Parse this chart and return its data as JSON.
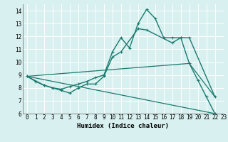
{
  "title": "",
  "xlabel": "Humidex (Indice chaleur)",
  "xlim": [
    -0.5,
    23
  ],
  "ylim": [
    6,
    14.5
  ],
  "xticks": [
    0,
    1,
    2,
    3,
    4,
    5,
    6,
    7,
    8,
    9,
    10,
    11,
    12,
    13,
    14,
    15,
    16,
    17,
    18,
    19,
    20,
    21,
    22,
    23
  ],
  "yticks": [
    6,
    7,
    8,
    9,
    10,
    11,
    12,
    13,
    14
  ],
  "bg_color": "#d8f0f0",
  "grid_color": "#b8d8d8",
  "line_color": "#1a7a6e",
  "line1_x": [
    0,
    1,
    2,
    3,
    4,
    5,
    6,
    7,
    8,
    9,
    10,
    11,
    12,
    13,
    14,
    15,
    16,
    17,
    18,
    19,
    20,
    21,
    22
  ],
  "line1_y": [
    8.9,
    8.5,
    8.2,
    8.0,
    7.9,
    8.1,
    8.3,
    8.5,
    8.8,
    9.0,
    10.8,
    11.9,
    11.1,
    13.0,
    14.1,
    13.4,
    11.9,
    11.9,
    11.9,
    9.9,
    8.6,
    7.3,
    6.0
  ],
  "line2_x": [
    0,
    2,
    3,
    4,
    5,
    6,
    7,
    8,
    9,
    10,
    11,
    13,
    14,
    17,
    18,
    19,
    22
  ],
  "line2_y": [
    8.9,
    8.2,
    8.0,
    7.8,
    7.6,
    8.0,
    8.3,
    8.3,
    8.9,
    10.4,
    10.8,
    12.6,
    12.5,
    11.5,
    11.9,
    11.9,
    7.3
  ],
  "line3_x": [
    0,
    22
  ],
  "line3_y": [
    8.9,
    6.0
  ],
  "line4_x": [
    0,
    19,
    22
  ],
  "line4_y": [
    8.9,
    9.9,
    7.3
  ]
}
